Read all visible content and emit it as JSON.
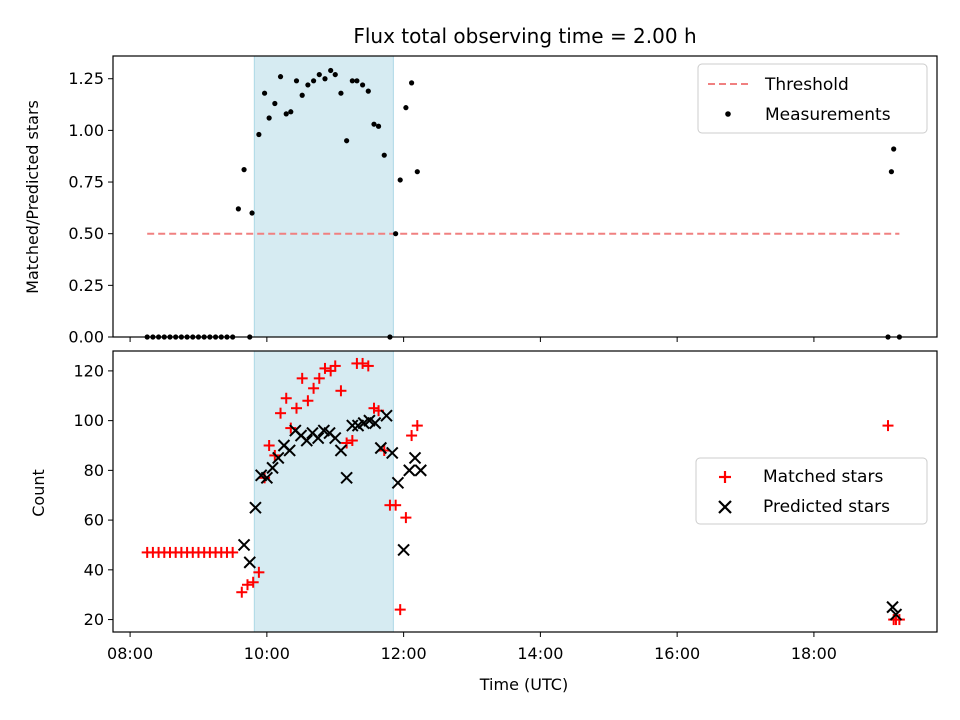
{
  "colors": {
    "shade": "#add8e6",
    "threshold": "#f08080",
    "measurements": "#000000",
    "matched": "#ff0000",
    "predicted": "#000000"
  },
  "chart_data": [
    {
      "type": "scatter",
      "title": "Flux total observing time = 2.00 h",
      "xlabel": "",
      "ylabel": "Matched/Predicted stars",
      "xlim": [
        "08:00",
        "20:00"
      ],
      "ylim": [
        0,
        1.36
      ],
      "yticks": [
        "0.00",
        "0.25",
        "0.50",
        "0.75",
        "1.00",
        "1.25"
      ],
      "shaded_span": {
        "x_start": "09:49",
        "x_end": "11:51"
      },
      "legend": {
        "position": "top-right",
        "entries": [
          "Threshold",
          "Measurements"
        ]
      },
      "series": [
        {
          "name": "Threshold",
          "kind": "dashed-line",
          "x": [
            "08:15",
            "19:15"
          ],
          "y": [
            0.5,
            0.5
          ]
        },
        {
          "name": "Measurements",
          "kind": "dots",
          "x": [
            "08:15",
            "08:20",
            "08:25",
            "08:30",
            "08:35",
            "08:40",
            "08:45",
            "08:50",
            "08:55",
            "09:00",
            "09:05",
            "09:10",
            "09:15",
            "09:20",
            "09:25",
            "09:30",
            "09:35",
            "09:40",
            "09:45",
            "09:47",
            "09:53",
            "09:58",
            "10:02",
            "10:07",
            "10:12",
            "10:17",
            "10:21",
            "10:26",
            "10:31",
            "10:36",
            "10:41",
            "10:46",
            "10:51",
            "10:56",
            "11:00",
            "11:05",
            "11:10",
            "11:15",
            "11:19",
            "11:24",
            "11:29",
            "11:34",
            "11:38",
            "11:43",
            "11:48",
            "11:53",
            "11:57",
            "12:02",
            "12:07",
            "12:12",
            "19:05",
            "19:08",
            "19:10",
            "19:15"
          ],
          "y": [
            0,
            0,
            0,
            0,
            0,
            0,
            0,
            0,
            0,
            0,
            0,
            0,
            0,
            0,
            0,
            0,
            0.62,
            0.81,
            0,
            0.6,
            0.98,
            1.18,
            1.06,
            1.13,
            1.26,
            1.08,
            1.09,
            1.24,
            1.17,
            1.22,
            1.24,
            1.27,
            1.25,
            1.29,
            1.27,
            1.18,
            0.95,
            1.24,
            1.24,
            1.22,
            1.19,
            1.03,
            1.02,
            0.88,
            0,
            0.5,
            0.76,
            1.11,
            1.23,
            0.8,
            0,
            0.8,
            0.91,
            0
          ]
        }
      ]
    },
    {
      "type": "scatter",
      "title": "",
      "xlabel": "Time (UTC)",
      "ylabel": "Count",
      "xlim": [
        "08:00",
        "20:00"
      ],
      "ylim": [
        15,
        128
      ],
      "xticks": [
        "08:00",
        "10:00",
        "12:00",
        "14:00",
        "16:00",
        "18:00"
      ],
      "yticks": [
        20,
        40,
        60,
        80,
        100,
        120
      ],
      "shaded_span": {
        "x_start": "09:49",
        "x_end": "11:51"
      },
      "legend": {
        "position": "center-right",
        "entries": [
          "Matched stars",
          "Predicted stars"
        ]
      },
      "series": [
        {
          "name": "Matched stars",
          "marker": "plus",
          "x": [
            "08:15",
            "08:20",
            "08:25",
            "08:30",
            "08:35",
            "08:40",
            "08:45",
            "08:50",
            "08:55",
            "09:00",
            "09:05",
            "09:10",
            "09:15",
            "09:20",
            "09:25",
            "09:30",
            "09:38",
            "09:43",
            "09:48",
            "09:53",
            "09:58",
            "10:02",
            "10:07",
            "10:12",
            "10:17",
            "10:21",
            "10:26",
            "10:31",
            "10:36",
            "10:41",
            "10:46",
            "10:51",
            "10:56",
            "11:00",
            "11:05",
            "11:10",
            "11:15",
            "11:19",
            "11:24",
            "11:29",
            "11:34",
            "11:38",
            "11:43",
            "11:48",
            "11:53",
            "11:57",
            "12:02",
            "12:07",
            "12:12",
            "19:05",
            "19:10",
            "19:12",
            "19:15"
          ],
          "y": [
            47,
            47,
            47,
            47,
            47,
            47,
            47,
            47,
            47,
            47,
            47,
            47,
            47,
            47,
            47,
            47,
            31,
            34,
            35,
            39,
            77,
            90,
            86,
            103,
            109,
            97,
            105,
            117,
            108,
            113,
            117,
            121,
            120,
            122,
            112,
            91,
            92,
            123,
            123,
            122,
            105,
            104,
            88,
            66,
            66,
            24,
            61,
            94,
            98,
            98,
            20,
            20,
            20
          ]
        },
        {
          "name": "Predicted stars",
          "marker": "x",
          "x": [
            "09:40",
            "09:45",
            "09:50",
            "09:55",
            "10:00",
            "10:05",
            "10:10",
            "10:15",
            "10:20",
            "10:25",
            "10:30",
            "10:35",
            "10:40",
            "10:45",
            "10:50",
            "10:55",
            "11:00",
            "11:05",
            "11:10",
            "11:15",
            "11:20",
            "11:25",
            "11:30",
            "11:35",
            "11:40",
            "11:45",
            "11:50",
            "11:55",
            "12:00",
            "12:05",
            "12:10",
            "12:15",
            "19:09",
            "19:12"
          ],
          "y": [
            50,
            43,
            65,
            78,
            77,
            81,
            85,
            90,
            88,
            96,
            94,
            92,
            95,
            93,
            96,
            95,
            93,
            88,
            77,
            98,
            98,
            99,
            100,
            99,
            89,
            102,
            87,
            75,
            48,
            80,
            85,
            80,
            25,
            22
          ]
        }
      ]
    }
  ]
}
